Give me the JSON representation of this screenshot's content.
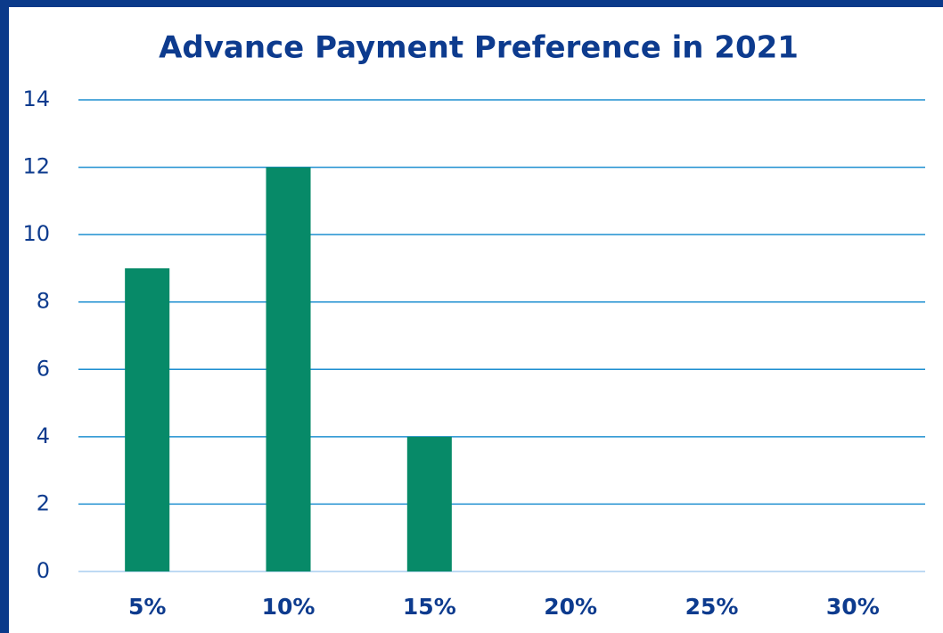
{
  "chart_data": {
    "type": "bar",
    "title": "Advance Payment Preference in 2021",
    "categories": [
      "5%",
      "10%",
      "15%",
      "20%",
      "25%",
      "30%"
    ],
    "values": [
      9,
      12,
      4,
      0,
      0,
      0
    ],
    "color": "#078a68",
    "ylim": [
      0,
      14
    ],
    "yticks": [
      0,
      2,
      4,
      6,
      8,
      10,
      12,
      14
    ],
    "grid": true
  }
}
